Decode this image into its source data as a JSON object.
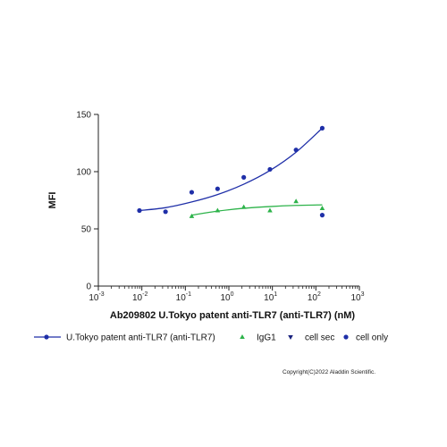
{
  "chart_data": {
    "type": "scatter",
    "title": "",
    "xlabel": "Ab209802 U.Tokyo patent anti-TLR7 (anti-TLR7) (nM)",
    "ylabel": "MFI",
    "xscale": "log",
    "xlim": [
      0.001,
      1000
    ],
    "ylim": [
      0,
      150
    ],
    "x_ticks": [
      {
        "value": 0.001,
        "base": "10",
        "exp": "-3"
      },
      {
        "value": 0.01,
        "base": "10",
        "exp": "-2"
      },
      {
        "value": 0.1,
        "base": "10",
        "exp": "-1"
      },
      {
        "value": 1,
        "base": "10",
        "exp": "0"
      },
      {
        "value": 10,
        "base": "10",
        "exp": "1"
      },
      {
        "value": 100,
        "base": "10",
        "exp": "2"
      },
      {
        "value": 1000,
        "base": "10",
        "exp": "3"
      }
    ],
    "y_ticks": [
      {
        "value": 0,
        "label": "0"
      },
      {
        "value": 50,
        "label": "50"
      },
      {
        "value": 100,
        "label": "100"
      },
      {
        "value": 150,
        "label": "150"
      }
    ],
    "grid": false,
    "legend_position": "bottom",
    "series": [
      {
        "name": "U.Tokyo patent anti-TLR7 (anti-TLR7)",
        "color": "#1f2fa8",
        "marker": "circle",
        "points": [
          [
            0.0088,
            66
          ],
          [
            0.035,
            65
          ],
          [
            0.14,
            82
          ],
          [
            0.55,
            85
          ],
          [
            2.2,
            95
          ],
          [
            8.8,
            102
          ],
          [
            35,
            119
          ],
          [
            140,
            138
          ]
        ],
        "fit": [
          [
            0.0088,
            66
          ],
          [
            0.035,
            68.5
          ],
          [
            0.14,
            73.5
          ],
          [
            0.55,
            80
          ],
          [
            2.2,
            89
          ],
          [
            8.8,
            101
          ],
          [
            35,
            117
          ],
          [
            140,
            138
          ]
        ]
      },
      {
        "name": "IgG1",
        "color": "#2db34a",
        "marker": "triangle-up",
        "points": [
          [
            0.14,
            61
          ],
          [
            0.55,
            66
          ],
          [
            2.2,
            69
          ],
          [
            8.8,
            66
          ],
          [
            35,
            74
          ],
          [
            140,
            68
          ]
        ],
        "fit": [
          [
            0.14,
            62
          ],
          [
            0.55,
            65.5
          ],
          [
            2.2,
            68
          ],
          [
            8.8,
            69.5
          ],
          [
            35,
            70.5
          ],
          [
            140,
            71
          ]
        ]
      },
      {
        "name": "cell sec",
        "color": "#1a237e",
        "marker": "triangle-down",
        "points": []
      },
      {
        "name": "cell only",
        "color": "#1f2fa8",
        "marker": "circle",
        "points": [
          [
            140,
            62
          ]
        ]
      }
    ]
  },
  "copyright": "Copyright(C)2022 Aladdin Scientific."
}
